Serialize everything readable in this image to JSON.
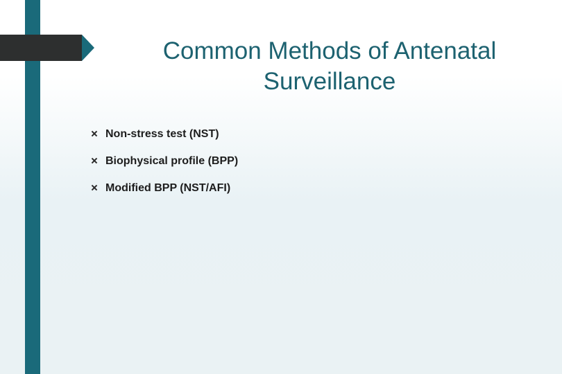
{
  "title": "Common Methods of Antenatal Surveillance",
  "title_color": "#1d6270",
  "title_fontsize": 35,
  "bullets": [
    {
      "text": "Non-stress test (NST)"
    },
    {
      "text": "Biophysical profile (BPP)"
    },
    {
      "text": "Modified BPP (NST/AFI)"
    }
  ],
  "bullet_fontsize": 16,
  "bullet_fontweight": "700",
  "bullet_color": "#1d1d1d",
  "accent_stripe_color": "#1a6a7a",
  "tag_bar_color": "#2d2f2f",
  "background_top": "#ffffff",
  "background_bottom": "#eaf2f4",
  "slide_width": 810,
  "slide_height": 540
}
